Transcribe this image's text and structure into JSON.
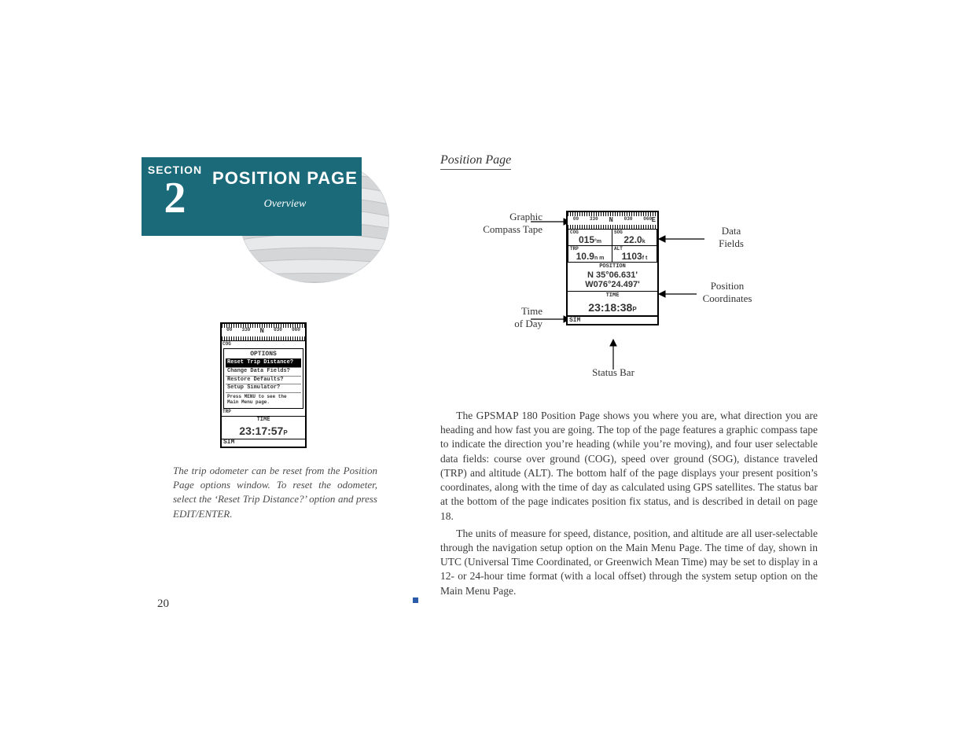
{
  "page_number": "20",
  "section": {
    "label": "SECTION",
    "number": "2",
    "title": "POSITION PAGE",
    "subtitle": "Overview",
    "colors": {
      "block_bg": "#1b6a7a",
      "text": "#ffffff"
    }
  },
  "heading": "Position Page",
  "left_screenshot": {
    "compass_labels": [
      "00",
      "330",
      "N",
      "030",
      "060"
    ],
    "options_title": "OPTIONS",
    "options": [
      {
        "label": "Reset Trip Distance?",
        "highlighted": true
      },
      {
        "label": "Change Data Fields?",
        "highlighted": false
      },
      {
        "label": "Restore Defaults?",
        "highlighted": false
      },
      {
        "label": "Setup Simulator?",
        "highlighted": false
      }
    ],
    "hint": "Press MENU to see the Main Menu page.",
    "cog_label": "COG",
    "trp_label": "TRP",
    "time_label": "TIME",
    "time_value": "23:17:57",
    "time_unit": "P",
    "status": "SIM"
  },
  "left_caption": "The trip odometer can be reset from the Position Page options window. To reset the odometer, select the ‘Reset Trip Distance?’ option and press EDIT/ENTER.",
  "diagram": {
    "callouts": {
      "compass": "Graphic\nCompass Tape",
      "time": "Time\nof Day",
      "data_fields": "Data\nFields",
      "position": "Position\nCoordinates",
      "status": "Status Bar"
    },
    "compass_labels": [
      "00",
      "330",
      "N",
      "030",
      "060"
    ],
    "compass_end": "E",
    "fields": {
      "cog": {
        "label": "COG",
        "value": "015",
        "unit": "°m"
      },
      "sog": {
        "label": "SOG",
        "value": "22.0",
        "unit": "k"
      },
      "trp": {
        "label": "TRP",
        "value": "10.9",
        "unit": "n m"
      },
      "alt": {
        "label": "ALT",
        "value": "1103",
        "unit": "f t"
      }
    },
    "position_label": "POSITION",
    "coords_line1": "N 35°06.631'",
    "coords_line2": "W076°24.497'",
    "time_label": "TIME",
    "time_value": "23:18:38",
    "time_unit": "P",
    "status": "SIM"
  },
  "body": {
    "p1": "The GPSMAP 180 Position Page shows you where you are, what direction you are heading and how fast you are going. The top of the page features a graphic compass tape to indicate the direction you’re heading (while you’re moving), and four user selectable data fields: course over ground (COG), speed over ground (SOG), distance traveled (TRP) and altitude (ALT). The bottom half of the page displays your present position’s coordinates, along with the time of day as calculated using GPS satellites. The status bar at the bottom of the page indicates position fix status, and is described in detail on page 18.",
    "p2": "The units of measure for speed, distance, position, and altitude are all user-selectable through the navigation setup option on the Main Menu Page. The time of day, shown in UTC (Universal Time Coordinated, or Greenwich Mean Time) may be set to display in a 12- or 24-hour time format (with a local offset) through the system setup option on the Main Menu Page."
  },
  "style": {
    "body_font_size": 13.5,
    "caption_font_size": 13,
    "callout_font_size": 13,
    "colors": {
      "text": "#333333",
      "gutter_mark": "#2a5caa"
    }
  }
}
